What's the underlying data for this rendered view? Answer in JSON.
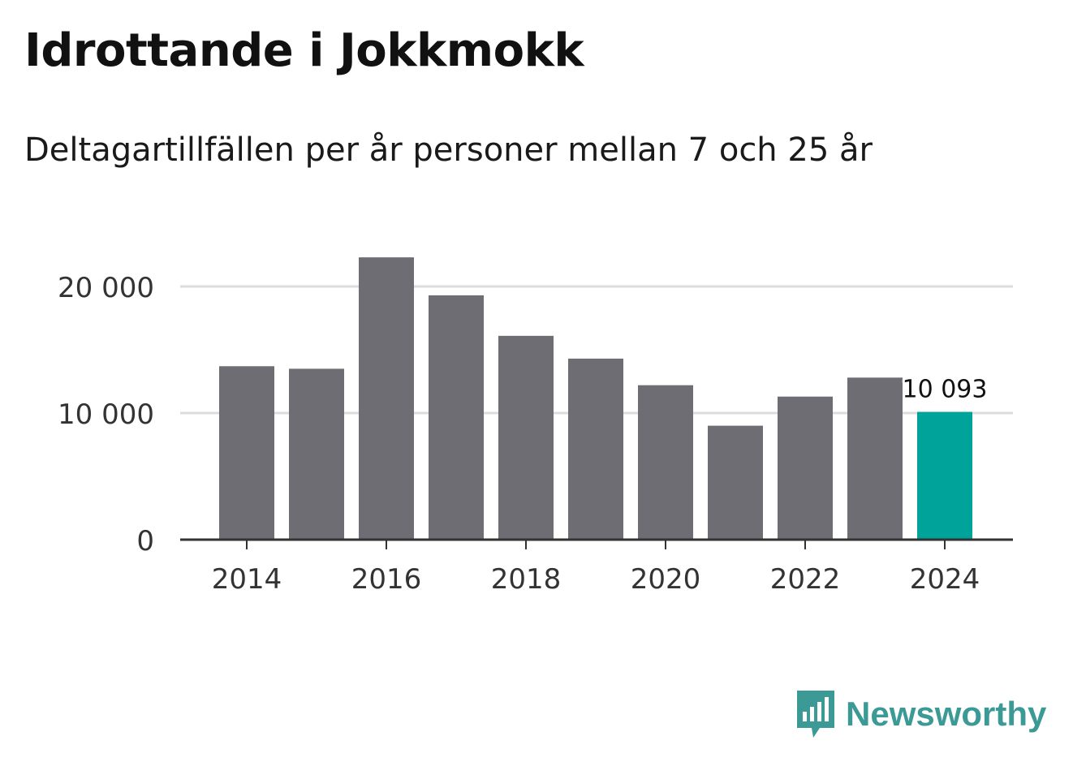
{
  "colors": {
    "bar_default": "#6e6d73",
    "bar_highlight": "#00a399",
    "gridline": "#dcdcdc",
    "axis": "#333333",
    "brand": "#3c9a96"
  },
  "chart_data": {
    "type": "bar",
    "title": "Idrottande i Jokkmokk",
    "subtitle": "Deltagartillfällen per år personer mellan 7 och 25 år",
    "xlabel": "",
    "ylabel": "",
    "categories": [
      "2014",
      "2015",
      "2016",
      "2017",
      "2018",
      "2019",
      "2020",
      "2021",
      "2022",
      "2023",
      "2024"
    ],
    "values": [
      13700,
      13500,
      22300,
      19300,
      16100,
      14300,
      12200,
      9000,
      11300,
      12800,
      10093
    ],
    "ylim": [
      0,
      25000
    ],
    "yticks": [
      {
        "value": 0,
        "label": "0"
      },
      {
        "value": 10000,
        "label": "10 000"
      },
      {
        "value": 20000,
        "label": "20 000"
      }
    ],
    "xticks": [
      "2014",
      "2016",
      "2018",
      "2020",
      "2022",
      "2024"
    ],
    "highlight_index": 10,
    "data_label": {
      "index": 10,
      "text": "10 093"
    },
    "grid": true
  },
  "brand": {
    "name": "Newsworthy",
    "icon": "newsworthy-logo-icon"
  }
}
